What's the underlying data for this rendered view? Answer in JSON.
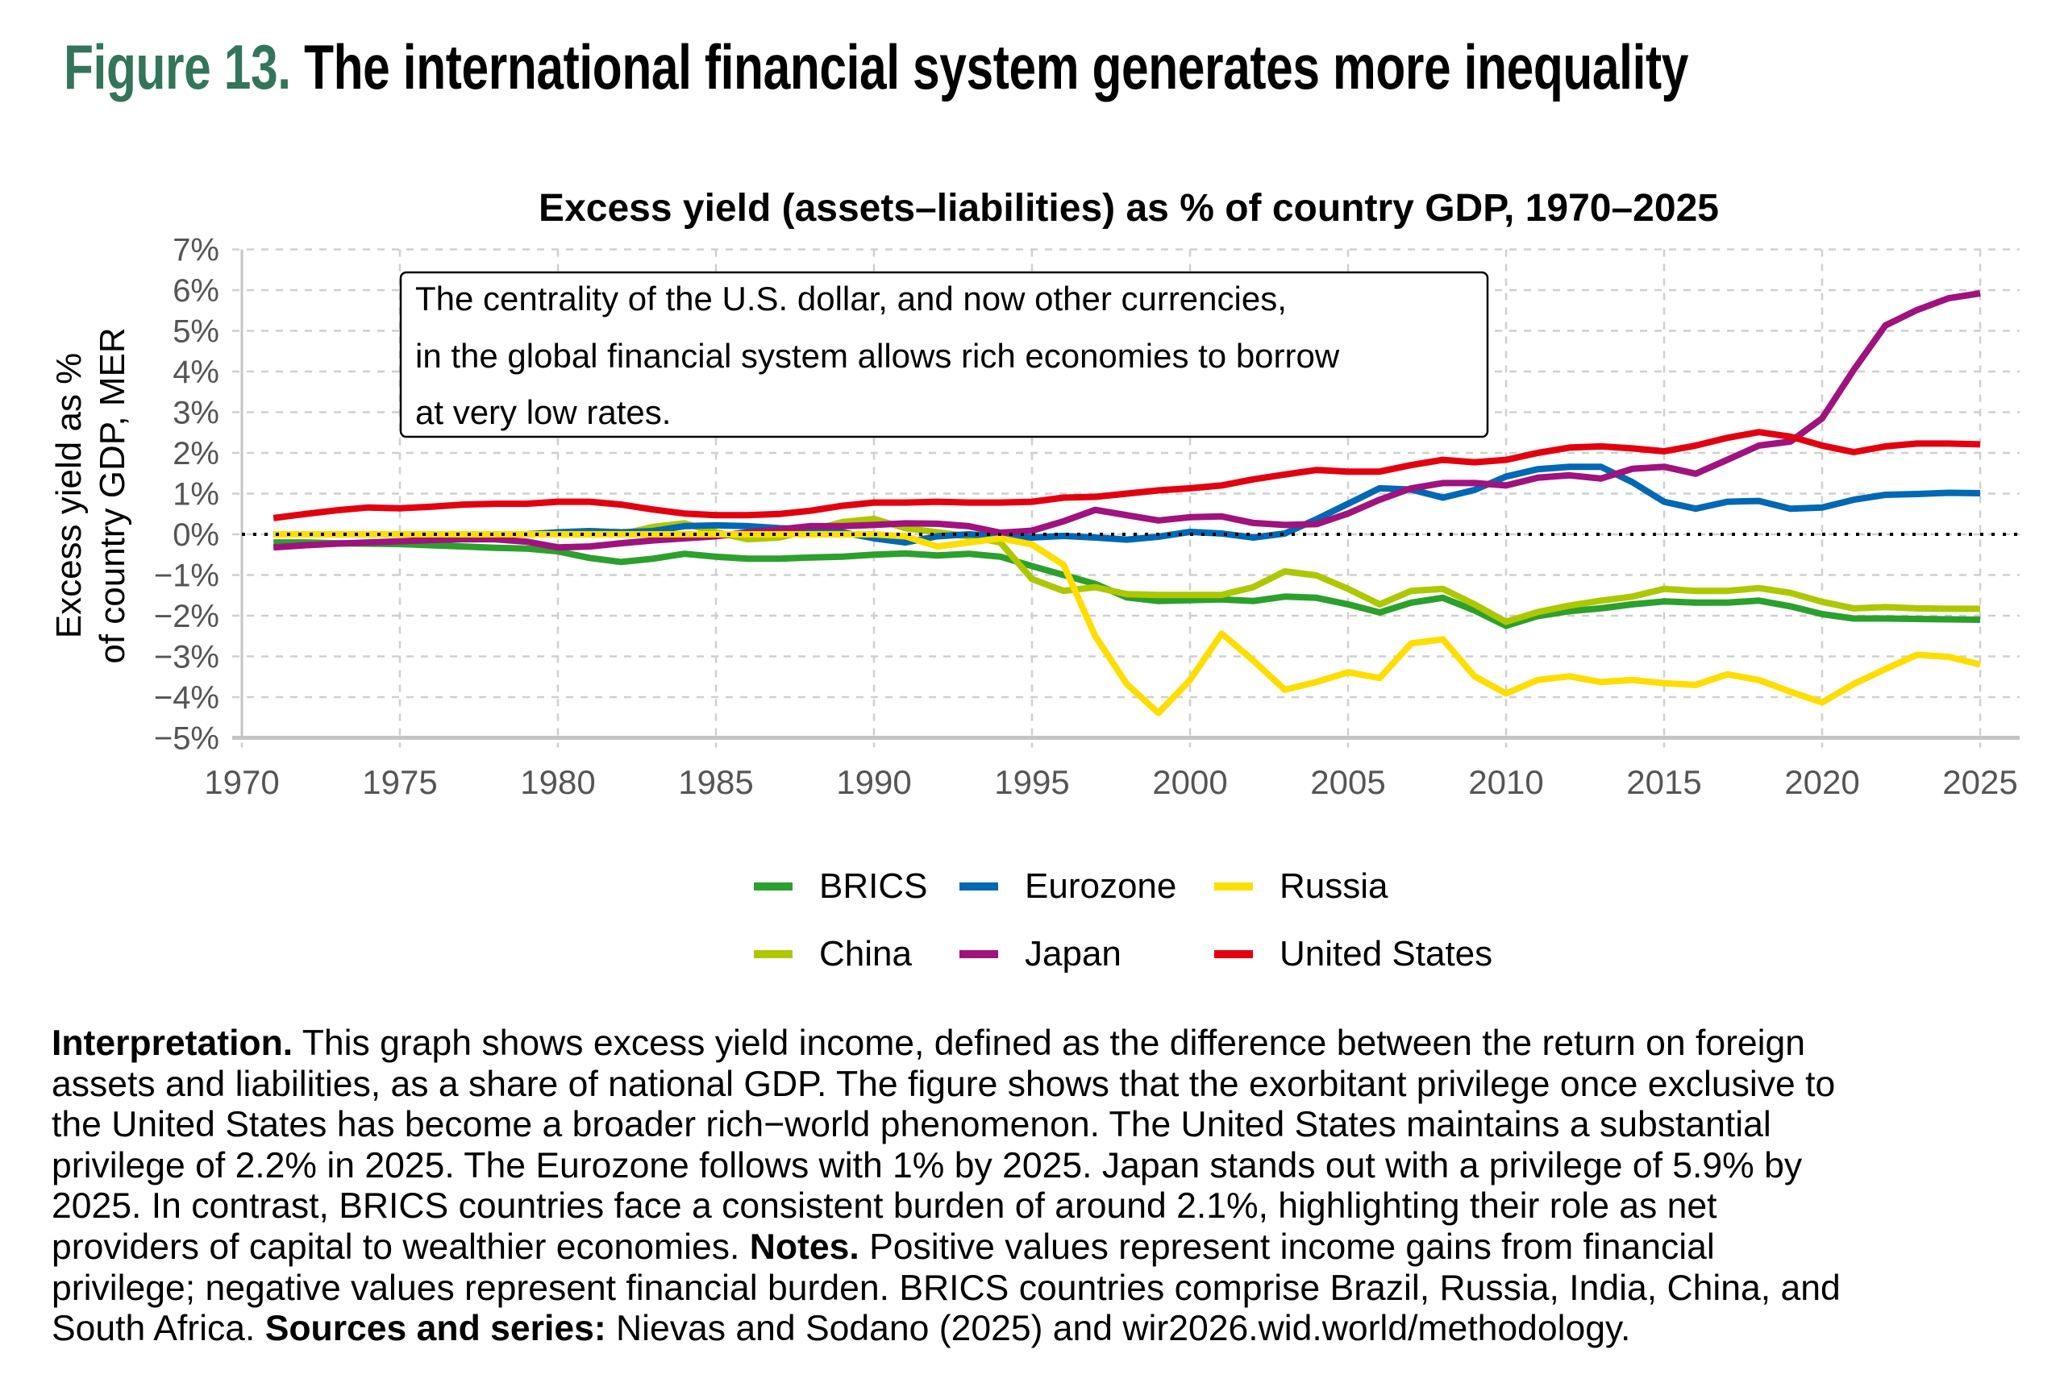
{
  "figure": {
    "number": "Figure 13.",
    "title": "The international financial system generates more inequality",
    "title_color": "#33755a"
  },
  "annotation": {
    "lines": [
      "The centrality of the U.S. dollar, and now other currencies,",
      "in the global financial system allows rich economies to borrow",
      "at very low rates."
    ]
  },
  "legend": {
    "items": [
      {
        "label": "BRICS",
        "color": "#2ca02c"
      },
      {
        "label": "Eurozone",
        "color": "#0068b4"
      },
      {
        "label": "Russia",
        "color": "#ffdd00"
      },
      {
        "label": "China",
        "color": "#adc800"
      },
      {
        "label": "Japan",
        "color": "#a0127e"
      },
      {
        "label": "United States",
        "color": "#e3000f"
      }
    ]
  },
  "chart_data": {
    "type": "line",
    "title": "Excess yield (assets–liabilities) as % of country GDP, 1970–2025",
    "xlabel": "",
    "ylabel_lines": [
      "Excess yield as %",
      "of country GDP, MER"
    ],
    "xlim": [
      1970,
      2025
    ],
    "ylim": [
      -5,
      7
    ],
    "x_ticks": [
      "1970",
      "1975",
      "1980",
      "1985",
      "1990",
      "1995",
      "2000",
      "2005",
      "2010",
      "2015",
      "2020",
      "2025"
    ],
    "y_ticks": [
      "7%",
      "6%",
      "5%",
      "4%",
      "3%",
      "2%",
      "1%",
      "0%",
      "−1%",
      "−2%",
      "−3%",
      "−4%",
      "−5%"
    ],
    "grid": true,
    "zero_line": "dotted",
    "legend_position": "bottom",
    "x": [
      1971,
      1972,
      1973,
      1974,
      1975,
      1976,
      1977,
      1978,
      1979,
      1980,
      1981,
      1982,
      1983,
      1984,
      1985,
      1986,
      1987,
      1988,
      1989,
      1990,
      1991,
      1992,
      1993,
      1994,
      1995,
      1996,
      1997,
      1998,
      1999,
      2000,
      2001,
      2002,
      2003,
      2004,
      2005,
      2006,
      2007,
      2008,
      2009,
      2010,
      2011,
      2012,
      2013,
      2014,
      2015,
      2016,
      2017,
      2018,
      2019,
      2020,
      2021,
      2022,
      2023,
      2024,
      2025
    ],
    "series": [
      {
        "name": "BRICS",
        "color": "#2ca02c",
        "values": [
          -0.2,
          -0.2,
          -0.22,
          -0.23,
          -0.24,
          -0.27,
          -0.3,
          -0.33,
          -0.35,
          -0.42,
          -0.58,
          -0.68,
          -0.6,
          -0.48,
          -0.55,
          -0.6,
          -0.6,
          -0.57,
          -0.55,
          -0.5,
          -0.47,
          -0.52,
          -0.48,
          -0.55,
          -0.78,
          -1.0,
          -1.22,
          -1.55,
          -1.64,
          -1.62,
          -1.6,
          -1.64,
          -1.53,
          -1.56,
          -1.72,
          -1.92,
          -1.68,
          -1.56,
          -1.87,
          -2.25,
          -2.01,
          -1.89,
          -1.82,
          -1.72,
          -1.65,
          -1.68,
          -1.68,
          -1.63,
          -1.77,
          -1.96,
          -2.07,
          -2.07,
          -2.08,
          -2.09,
          -2.1
        ]
      },
      {
        "name": "China",
        "color": "#adc800",
        "values": [
          0,
          0,
          0,
          0,
          0,
          0,
          0,
          0,
          0,
          0,
          0,
          0,
          0.18,
          0.27,
          0.05,
          -0.12,
          -0.08,
          0.1,
          0.3,
          0.38,
          0.15,
          0.05,
          -0.05,
          -0.2,
          -1.1,
          -1.39,
          -1.3,
          -1.47,
          -1.49,
          -1.49,
          -1.49,
          -1.3,
          -0.91,
          -1.01,
          -1.34,
          -1.72,
          -1.39,
          -1.34,
          -1.72,
          -2.15,
          -1.91,
          -1.75,
          -1.63,
          -1.53,
          -1.34,
          -1.39,
          -1.39,
          -1.32,
          -1.44,
          -1.66,
          -1.82,
          -1.79,
          -1.82,
          -1.83,
          -1.83
        ]
      },
      {
        "name": "Eurozone",
        "color": "#0068b4",
        "values": [
          0,
          0,
          0,
          0,
          0,
          0,
          0,
          0,
          0,
          0.05,
          0.08,
          0.05,
          0.08,
          0.2,
          0.22,
          0.2,
          0.15,
          0.12,
          0.05,
          -0.1,
          -0.2,
          -0.05,
          0,
          -0.05,
          -0.08,
          -0.04,
          -0.08,
          -0.13,
          -0.06,
          0.06,
          0.02,
          -0.08,
          0.02,
          0.37,
          0.75,
          1.13,
          1.1,
          0.9,
          1.09,
          1.42,
          1.6,
          1.66,
          1.66,
          1.28,
          0.8,
          0.63,
          0.8,
          0.82,
          0.63,
          0.66,
          0.85,
          0.97,
          0.99,
          1.02,
          1.01
        ]
      },
      {
        "name": "Japan",
        "color": "#a0127e",
        "values": [
          -0.32,
          -0.27,
          -0.23,
          -0.2,
          -0.17,
          -0.14,
          -0.12,
          -0.12,
          -0.18,
          -0.32,
          -0.3,
          -0.22,
          -0.15,
          -0.1,
          -0.05,
          0.05,
          0.12,
          0.2,
          0.2,
          0.23,
          0.27,
          0.26,
          0.2,
          0.04,
          0.09,
          0.32,
          0.6,
          0.47,
          0.34,
          0.42,
          0.44,
          0.28,
          0.23,
          0.25,
          0.51,
          0.85,
          1.13,
          1.26,
          1.26,
          1.2,
          1.39,
          1.45,
          1.37,
          1.61,
          1.66,
          1.49,
          1.83,
          2.18,
          2.28,
          2.85,
          4.04,
          5.13,
          5.51,
          5.8,
          5.92
        ]
      },
      {
        "name": "Russia",
        "color": "#ffdd00",
        "values": [
          0,
          0,
          0,
          0,
          0,
          0,
          0,
          0,
          0,
          0,
          0,
          0,
          0,
          0,
          0,
          0,
          0,
          0,
          0,
          0,
          -0.05,
          -0.3,
          -0.2,
          -0.1,
          -0.25,
          -0.75,
          -2.5,
          -3.68,
          -4.39,
          -3.58,
          -2.44,
          -3.1,
          -3.82,
          -3.63,
          -3.39,
          -3.53,
          -2.68,
          -2.58,
          -3.49,
          -3.91,
          -3.58,
          -3.49,
          -3.63,
          -3.58,
          -3.66,
          -3.7,
          -3.44,
          -3.58,
          -3.87,
          -4.13,
          -3.68,
          -3.31,
          -2.96,
          -3.01,
          -3.2
        ]
      },
      {
        "name": "United States",
        "color": "#e3000f",
        "values": [
          0.4,
          0.5,
          0.59,
          0.66,
          0.64,
          0.68,
          0.73,
          0.75,
          0.75,
          0.8,
          0.8,
          0.73,
          0.61,
          0.51,
          0.47,
          0.47,
          0.5,
          0.58,
          0.7,
          0.78,
          0.78,
          0.8,
          0.78,
          0.78,
          0.8,
          0.9,
          0.92,
          1.0,
          1.08,
          1.13,
          1.2,
          1.35,
          1.47,
          1.58,
          1.54,
          1.54,
          1.7,
          1.83,
          1.77,
          1.83,
          2.0,
          2.13,
          2.16,
          2.11,
          2.04,
          2.18,
          2.37,
          2.51,
          2.4,
          2.18,
          2.02,
          2.16,
          2.23,
          2.23,
          2.21
        ]
      }
    ]
  },
  "interpretation": {
    "lines": [
      [
        {
          "b": "Interpretation."
        },
        {
          "t": " This graph shows excess yield income, defined as the difference between the return on foreign"
        }
      ],
      [
        {
          "t": "assets and liabilities, as a share of national GDP. The figure shows that the exorbitant privilege once exclusive to"
        }
      ],
      [
        {
          "t": "the United States has become a broader rich−world phenomenon. The United States maintains a substantial"
        }
      ],
      [
        {
          "t": "privilege of 2.2% in 2025. The Eurozone follows with 1% by 2025. Japan stands out with a privilege of 5.9% by"
        }
      ],
      [
        {
          "t": "2025. In contrast, BRICS countries face a consistent burden of around 2.1%, highlighting their role as net"
        }
      ],
      [
        {
          "t": "providers of capital to wealthier economies. "
        },
        {
          "b": "Notes."
        },
        {
          "t": " Positive values represent income gains from financial"
        }
      ],
      [
        {
          "t": "privilege; negative values represent financial burden. BRICS countries comprise Brazil, Russia, India, China, and"
        }
      ],
      [
        {
          "t": "South Africa. "
        },
        {
          "b": "Sources and series:"
        },
        {
          "t": " Nievas and Sodano (2025) and wir2026.wid.world/methodology."
        }
      ]
    ]
  }
}
